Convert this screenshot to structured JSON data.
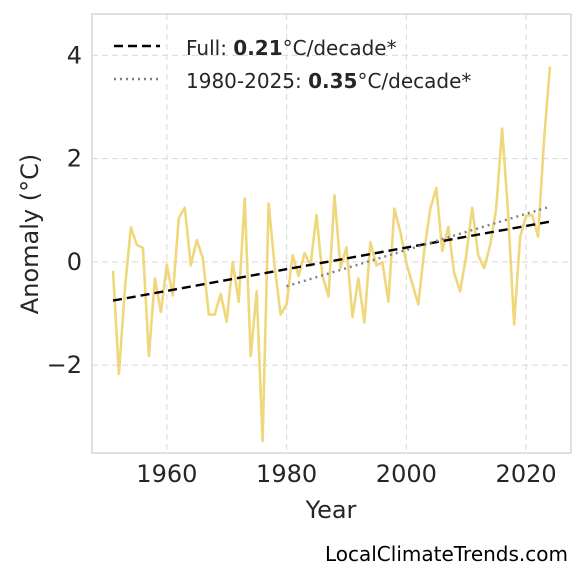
{
  "chart_data": {
    "type": "line",
    "xlabel": "Year",
    "ylabel": "Anomaly (°C)",
    "xlim": [
      1947.5,
      2027.5
    ],
    "ylim": [
      -3.7,
      4.8
    ],
    "x_ticks": [
      1960,
      1980,
      2000,
      2020
    ],
    "x_tick_labels": [
      "1960",
      "1980",
      "2000",
      "2020"
    ],
    "y_ticks": [
      -2,
      0,
      2,
      4
    ],
    "y_tick_labels": [
      "−2",
      "0",
      "2",
      "4"
    ],
    "grid": true,
    "legend_position": "top-left",
    "series": [
      {
        "kind": "anomaly",
        "color": "#f0d77c",
        "x": [
          1951,
          1952,
          1953,
          1954,
          1955,
          1956,
          1957,
          1958,
          1959,
          1960,
          1961,
          1962,
          1963,
          1964,
          1965,
          1966,
          1967,
          1968,
          1969,
          1970,
          1971,
          1972,
          1973,
          1974,
          1975,
          1976,
          1977,
          1978,
          1979,
          1980,
          1981,
          1982,
          1983,
          1984,
          1985,
          1986,
          1987,
          1988,
          1989,
          1990,
          1991,
          1992,
          1993,
          1994,
          1995,
          1996,
          1997,
          1998,
          1999,
          2000,
          2001,
          2002,
          2003,
          2004,
          2005,
          2006,
          2007,
          2008,
          2009,
          2010,
          2011,
          2012,
          2013,
          2014,
          2015,
          2016,
          2017,
          2018,
          2019,
          2020,
          2021,
          2022,
          2023,
          2024
        ],
        "values": [
          -0.17,
          -2.17,
          -0.52,
          0.67,
          0.33,
          0.27,
          -1.82,
          -0.32,
          -0.97,
          -0.05,
          -0.65,
          0.85,
          1.05,
          -0.07,
          0.42,
          0.08,
          -1.02,
          -1.02,
          -0.62,
          -1.16,
          0.0,
          -0.77,
          1.23,
          -1.82,
          -0.57,
          -3.47,
          1.13,
          -0.07,
          -1.02,
          -0.82,
          0.13,
          -0.27,
          0.17,
          -0.07,
          0.91,
          -0.27,
          -0.67,
          1.29,
          -0.12,
          0.28,
          -1.07,
          -0.32,
          -1.17,
          0.38,
          -0.07,
          -0.01,
          -0.77,
          1.03,
          0.58,
          -0.02,
          -0.42,
          -0.82,
          0.23,
          1.03,
          1.43,
          0.21,
          0.68,
          -0.22,
          -0.57,
          0.12,
          1.05,
          0.13,
          -0.12,
          0.33,
          1.03,
          2.58,
          0.95,
          -1.21,
          0.48,
          0.89,
          0.91,
          0.49,
          2.38,
          3.78
        ]
      },
      {
        "kind": "trend",
        "name": "Full",
        "color": "#000000",
        "x": [
          1951,
          2024
        ],
        "values": [
          -0.75,
          0.78
        ]
      },
      {
        "kind": "trend",
        "name": "1980-2025",
        "color": "#808080",
        "x": [
          1980,
          2024
        ],
        "values": [
          -0.47,
          1.07
        ]
      }
    ],
    "legend": [
      {
        "label_prefix": "Full: ",
        "label_value": "0.21",
        "label_suffix": "°C/decade*",
        "style": "dashed",
        "color": "#000000"
      },
      {
        "label_prefix": "1980-2025: ",
        "label_value": "0.35",
        "label_suffix": "°C/decade*",
        "style": "dotted",
        "color": "#808080"
      }
    ]
  },
  "footer": {
    "credit": "LocalClimateTrends.com"
  }
}
